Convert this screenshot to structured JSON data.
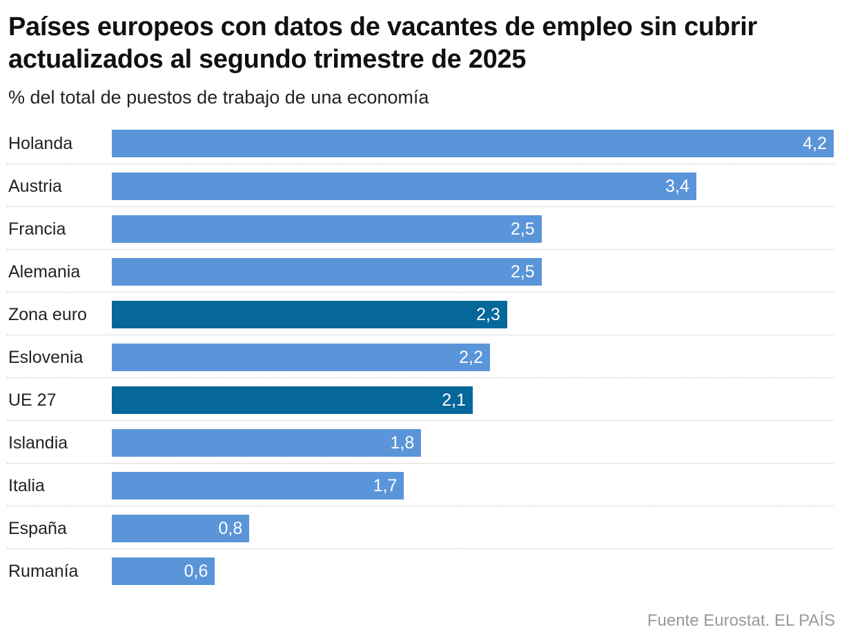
{
  "chart_data": {
    "type": "bar",
    "orientation": "horizontal",
    "title": "Países europeos con datos de vacantes de empleo sin cubrir actualizados al segundo trimestre de 2025",
    "subtitle": "% del total de puestos de trabajo de una economía",
    "categories": [
      "Holanda",
      "Austria",
      "Francia",
      "Alemania",
      "Zona euro",
      "Eslovenia",
      "UE 27",
      "Islandia",
      "Italia",
      "España",
      "Rumanía"
    ],
    "values": [
      4.2,
      3.4,
      2.5,
      2.5,
      2.3,
      2.2,
      2.1,
      1.8,
      1.7,
      0.8,
      0.6
    ],
    "value_labels": [
      "4,2",
      "3,4",
      "2,5",
      "2,5",
      "2,3",
      "2,2",
      "2,1",
      "1,8",
      "1,7",
      "0,8",
      "0,6"
    ],
    "highlighted": [
      "Zona euro",
      "UE 27"
    ],
    "colors": {
      "default": "#5b95d9",
      "highlight": "#06679b"
    },
    "xlim": [
      0,
      4.2
    ],
    "grid": false,
    "source": "Fuente Eurostat. EL PAÍS"
  }
}
